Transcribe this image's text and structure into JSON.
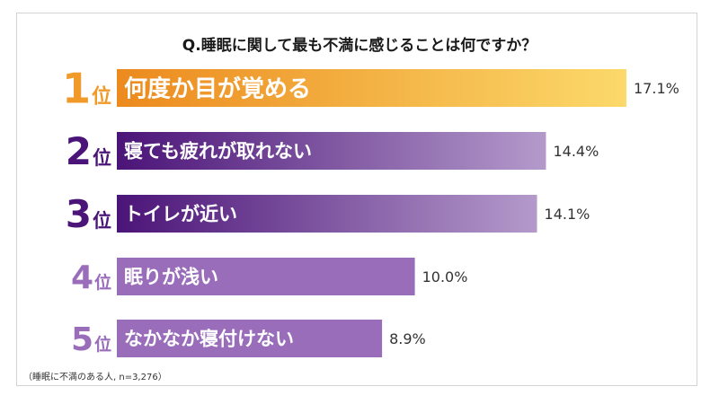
{
  "question": "Q.睡眠に関して最も不満に感じることは何ですか？",
  "note": "（睡眠に不満のある人, n=3,276）",
  "rank_suffix": "位",
  "chart_data": {
    "type": "bar",
    "orientation": "horizontal",
    "title": "Q.睡眠に関して最も不満に感じることは何ですか？",
    "categories": [
      "何度か目が覚める",
      "寝ても疲れが取れない",
      "トイレが近い",
      "眠りが浅い",
      "なかなか寝付けない"
    ],
    "ranks": [
      "1",
      "2",
      "3",
      "4",
      "5"
    ],
    "values": [
      17.1,
      14.4,
      14.1,
      10.0,
      8.9
    ],
    "value_labels": [
      "17.1%",
      "14.4%",
      "14.1%",
      "10.0%",
      "8.9%"
    ],
    "unit": "%",
    "xlim": [
      0,
      17.1
    ],
    "grid": false,
    "legend": "none",
    "colors": {
      "rank1_bar_start": "#ec8a1e",
      "rank1_bar_end": "#fbd96a",
      "rank1_text": "#f09a2a",
      "rank23_bar_start": "#4b1478",
      "rank23_bar_end": "#b49acb",
      "rank23_text": "#4b1478",
      "rank45_bar": "#9a6dbb",
      "rank45_text": "#9a6dbb",
      "value_text": "#333333"
    }
  }
}
